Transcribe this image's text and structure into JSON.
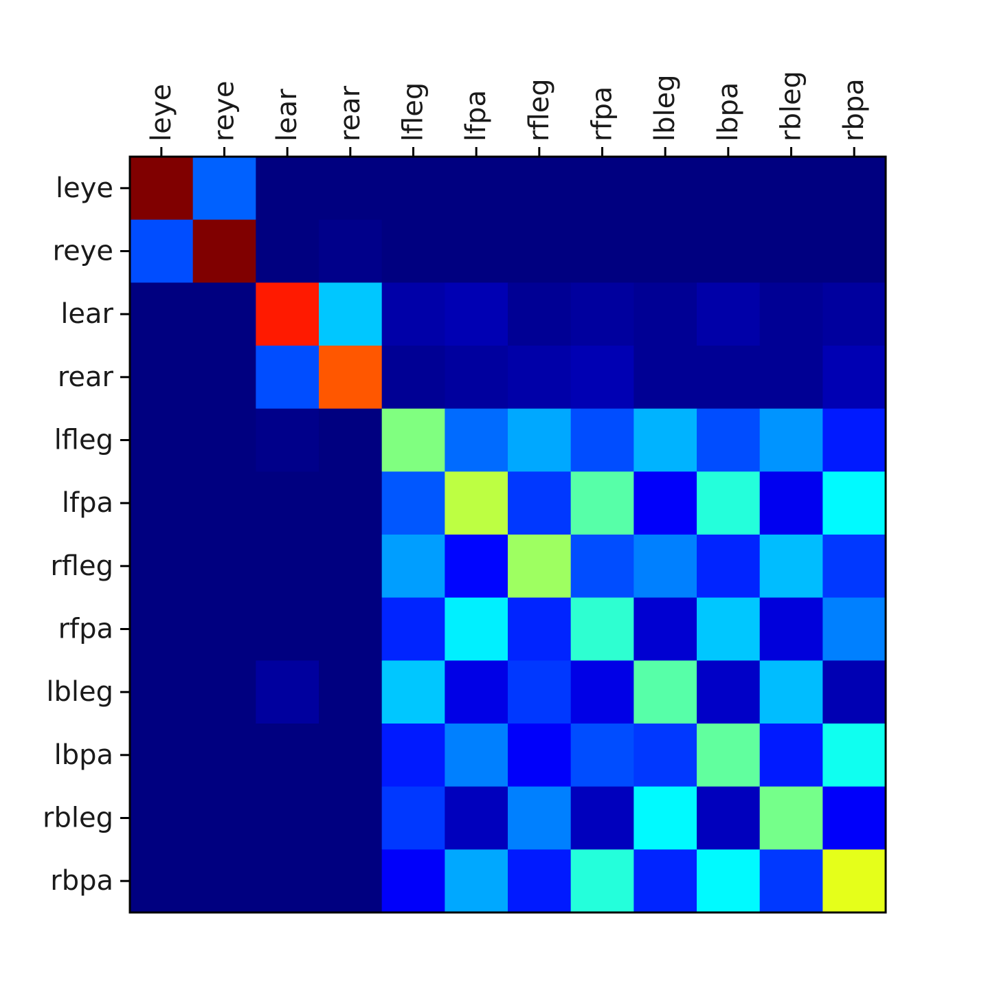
{
  "chart_data": {
    "type": "heatmap",
    "title": "",
    "xlabel": "",
    "ylabel": "",
    "colormap": "jet",
    "vlim": [
      0,
      1
    ],
    "grid": false,
    "legend": "none",
    "x_tick_position": "top",
    "x_tick_rotation": 90,
    "x_labels": [
      "leye",
      "reye",
      "lear",
      "rear",
      "lfleg",
      "lfpa",
      "rfleg",
      "rfpa",
      "lbleg",
      "lbpa",
      "rbleg",
      "rbpa"
    ],
    "y_labels": [
      "leye",
      "reye",
      "lear",
      "rear",
      "lfleg",
      "lfpa",
      "rfleg",
      "rfpa",
      "lbleg",
      "lbpa",
      "rbleg",
      "rbpa"
    ],
    "values": [
      [
        1.0,
        0.22,
        0.0,
        0.0,
        0.0,
        0.0,
        0.0,
        0.0,
        0.0,
        0.0,
        0.0,
        0.0
      ],
      [
        0.2,
        1.0,
        0.0,
        0.01,
        0.0,
        0.0,
        0.0,
        0.0,
        0.0,
        0.0,
        0.0,
        0.0
      ],
      [
        0.0,
        0.0,
        0.85,
        0.32,
        0.04,
        0.05,
        0.02,
        0.03,
        0.02,
        0.04,
        0.02,
        0.03
      ],
      [
        0.0,
        0.0,
        0.2,
        0.79,
        0.02,
        0.03,
        0.04,
        0.05,
        0.02,
        0.02,
        0.02,
        0.05
      ],
      [
        0.0,
        0.0,
        0.01,
        0.0,
        0.5,
        0.23,
        0.29,
        0.2,
        0.3,
        0.2,
        0.27,
        0.15
      ],
      [
        0.0,
        0.0,
        0.0,
        0.0,
        0.21,
        0.56,
        0.18,
        0.46,
        0.12,
        0.41,
        0.11,
        0.37
      ],
      [
        0.0,
        0.0,
        0.0,
        0.0,
        0.28,
        0.13,
        0.53,
        0.2,
        0.25,
        0.16,
        0.31,
        0.18
      ],
      [
        0.0,
        0.0,
        0.0,
        0.0,
        0.16,
        0.36,
        0.16,
        0.42,
        0.08,
        0.32,
        0.09,
        0.25
      ],
      [
        0.0,
        0.0,
        0.03,
        0.0,
        0.32,
        0.1,
        0.18,
        0.1,
        0.46,
        0.07,
        0.31,
        0.05
      ],
      [
        0.0,
        0.0,
        0.0,
        0.0,
        0.15,
        0.25,
        0.12,
        0.2,
        0.18,
        0.47,
        0.15,
        0.39
      ],
      [
        0.0,
        0.0,
        0.0,
        0.0,
        0.18,
        0.06,
        0.25,
        0.06,
        0.37,
        0.06,
        0.49,
        0.12
      ],
      [
        0.0,
        0.0,
        0.0,
        0.0,
        0.12,
        0.29,
        0.15,
        0.41,
        0.16,
        0.37,
        0.18,
        0.6
      ]
    ]
  }
}
